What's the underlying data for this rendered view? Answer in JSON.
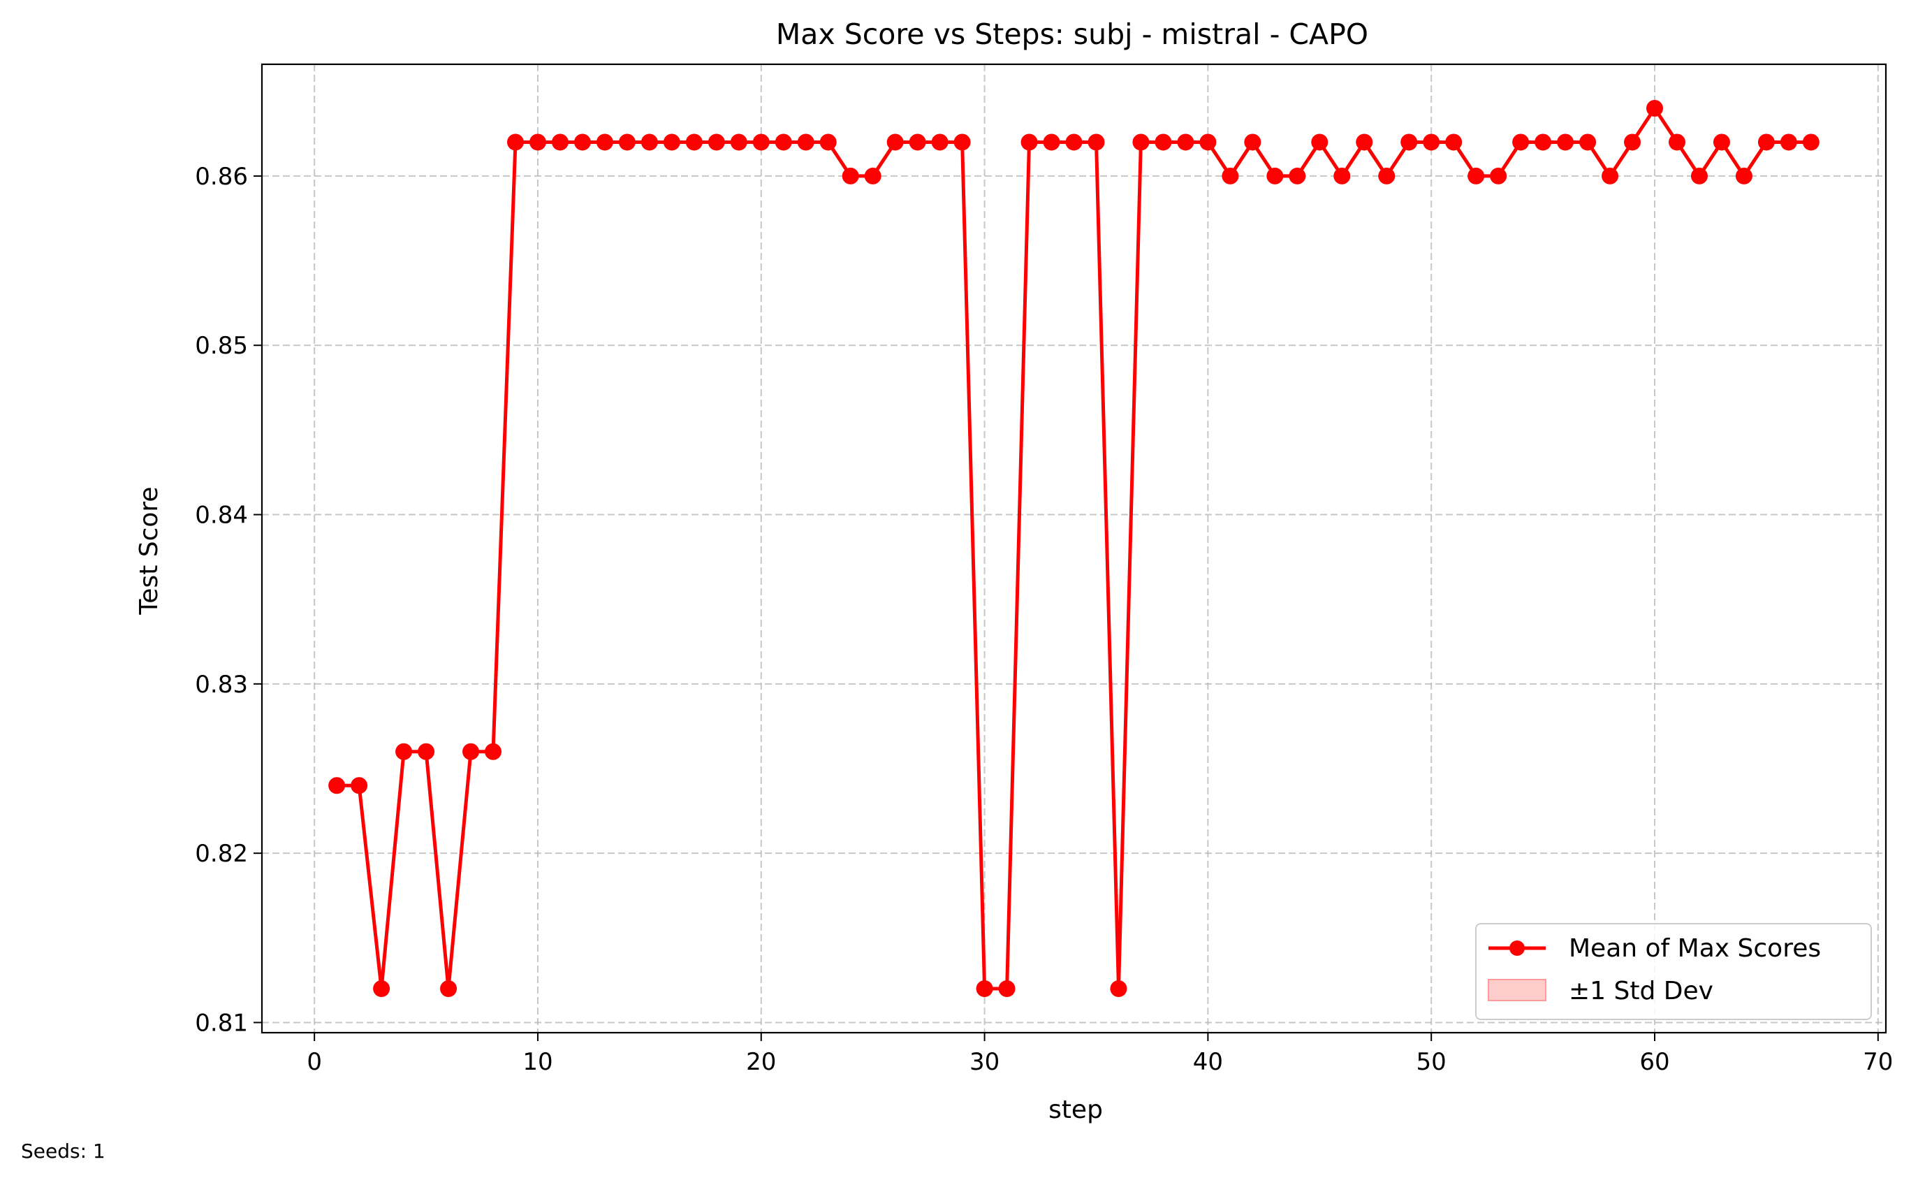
{
  "chart_data": {
    "type": "line",
    "title": "Max Score vs Steps: subj - mistral - CAPO",
    "xlabel": "step",
    "ylabel": "Test Score",
    "xlim": [
      -2.35,
      70.35
    ],
    "ylim": [
      0.8094,
      0.8666
    ],
    "xticks": [
      0,
      10,
      20,
      30,
      40,
      50,
      60,
      70
    ],
    "yticks": [
      0.81,
      0.82,
      0.83,
      0.84,
      0.85,
      0.86
    ],
    "ytick_labels": [
      "0.81",
      "0.82",
      "0.83",
      "0.84",
      "0.85",
      "0.86"
    ],
    "grid": true,
    "legend_position": "lower-right",
    "legend": [
      "Mean of Max Scores",
      "±1 Std Dev"
    ],
    "series": [
      {
        "name": "Mean of Max Scores",
        "color": "#ff0000",
        "marker": "circle",
        "x": [
          1,
          2,
          3,
          4,
          5,
          6,
          7,
          8,
          9,
          10,
          11,
          12,
          13,
          14,
          15,
          16,
          17,
          18,
          19,
          20,
          21,
          22,
          23,
          24,
          25,
          26,
          27,
          28,
          29,
          30,
          31,
          32,
          33,
          34,
          35,
          36,
          37,
          38,
          39,
          40,
          41,
          42,
          43,
          44,
          45,
          46,
          47,
          48,
          49,
          50,
          51,
          52,
          53,
          54,
          55,
          56,
          57,
          58,
          59,
          60,
          61,
          62,
          63,
          64,
          65,
          66,
          67
        ],
        "y": [
          0.824,
          0.824,
          0.812,
          0.826,
          0.826,
          0.812,
          0.826,
          0.826,
          0.862,
          0.862,
          0.862,
          0.862,
          0.862,
          0.862,
          0.862,
          0.862,
          0.862,
          0.862,
          0.862,
          0.862,
          0.862,
          0.862,
          0.862,
          0.86,
          0.86,
          0.862,
          0.862,
          0.862,
          0.862,
          0.812,
          0.812,
          0.862,
          0.862,
          0.862,
          0.862,
          0.812,
          0.862,
          0.862,
          0.862,
          0.862,
          0.86,
          0.862,
          0.86,
          0.86,
          0.862,
          0.86,
          0.862,
          0.86,
          0.862,
          0.862,
          0.862,
          0.86,
          0.86,
          0.862,
          0.862,
          0.862,
          0.862,
          0.86,
          0.862,
          0.864,
          0.862,
          0.86,
          0.862,
          0.86,
          0.862,
          0.862,
          0.862
        ]
      },
      {
        "name": "±1 Std Dev",
        "color": "#ffcccc",
        "type": "band"
      }
    ]
  },
  "footnote": "Seeds: 1"
}
